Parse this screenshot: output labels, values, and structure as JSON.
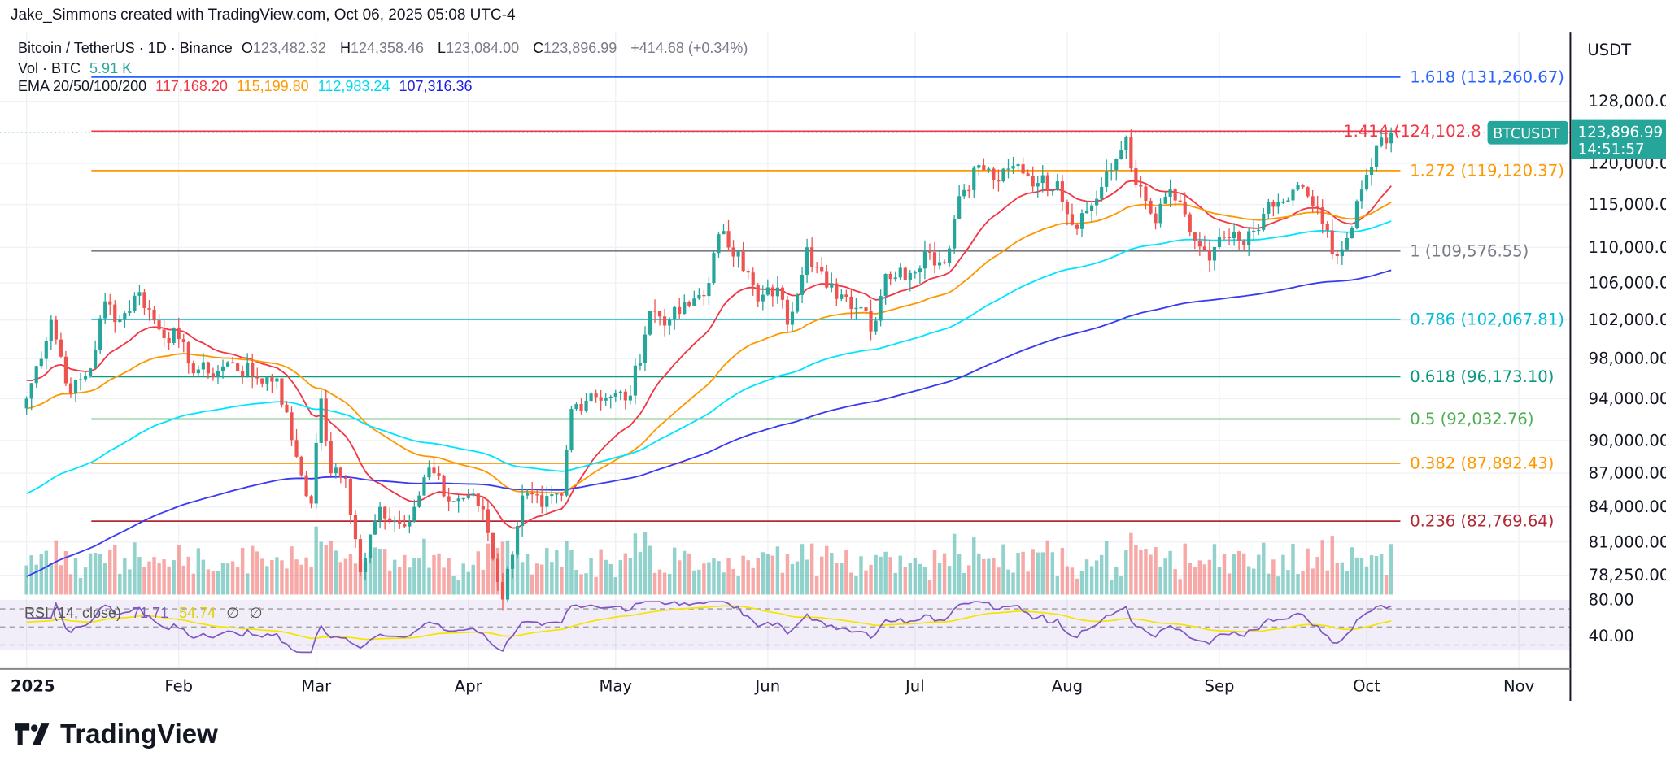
{
  "credit": "Jake_Simmons created with TradingView.com, Oct 06, 2025 05:08 UTC-4",
  "symbol": {
    "title": "Bitcoin / TetherUS · 1D · Binance",
    "o_label": "O",
    "o": "123,482.32",
    "h_label": "H",
    "h": "124,358.46",
    "l_label": "L",
    "l": "123,084.00",
    "c_label": "C",
    "c": "123,896.99",
    "change": "+414.68 (+0.34%)",
    "vol_label": "Vol · BTC",
    "vol": "5.91 K",
    "ema_label": "EMA 20/50/100/200",
    "ema20": "117,168.20",
    "ema50": "115,199.80",
    "ema100": "112,983.24",
    "ema200": "107,316.36"
  },
  "rsi": {
    "label": "RSI (14, close)",
    "value": "71.71",
    "ma": "54.74",
    "na1": "∅",
    "na2": "∅",
    "levels": [
      "80.00",
      "40.00"
    ]
  },
  "price_axis": {
    "currency": "USDT",
    "ticks": [
      "128,000.00",
      "120,000.00",
      "115,000.00",
      "110,000.00",
      "106,000.00",
      "102,000.00",
      "98,000.00",
      "94,000.00",
      "90,000.00",
      "87,000.00",
      "84,000.00",
      "81,000.00",
      "78,250.00"
    ],
    "current_label": "BTCUSDT",
    "current_price": "123,896.99",
    "countdown": "14:51:57"
  },
  "time_axis": [
    "2025",
    "Feb",
    "Mar",
    "Apr",
    "May",
    "Jun",
    "Jul",
    "Aug",
    "Sep",
    "Oct",
    "Nov"
  ],
  "logo": "TradingView",
  "colors": {
    "up": "#26a69a",
    "down": "#ef5350",
    "ema20": "#f23645",
    "ema50": "#ff9800",
    "ema100": "#00e5ff",
    "ema200": "#3a3af0",
    "rsi": "#7e57c2",
    "rsi_ma": "#f5e400"
  },
  "chart_data": {
    "type": "candlestick",
    "scale": "log",
    "ylim": [
      76000,
      134000
    ],
    "xlim": [
      "2025-01-01",
      "2025-11-10"
    ],
    "grid": true,
    "fib_levels": [
      {
        "level": "1.618",
        "price": 131260.67,
        "label": "1.618 (131,260.67)",
        "color": "#2962ff"
      },
      {
        "level": "1.414",
        "price": 124102.8,
        "label": "1.414 (124,102.8",
        "color": "#f23645"
      },
      {
        "level": "1.272",
        "price": 119120.37,
        "label": "1.272 (119,120.37)",
        "color": "#ff9800"
      },
      {
        "level": "1",
        "price": 109576.55,
        "label": "1 (109,576.55)",
        "color": "#787b86"
      },
      {
        "level": "0.786",
        "price": 102067.81,
        "label": "0.786 (102,067.81)",
        "color": "#00bcd4"
      },
      {
        "level": "0.618",
        "price": 96173.1,
        "label": "0.618 (96,173.10)",
        "color": "#089981"
      },
      {
        "level": "0.5",
        "price": 92032.76,
        "label": "0.5 (92,032.76)",
        "color": "#4caf50"
      },
      {
        "level": "0.382",
        "price": 87892.43,
        "label": "0.382 (87,892.43)",
        "color": "#ff9800"
      },
      {
        "level": "0.236",
        "price": 82769.64,
        "label": "0.236 (82,769.64)",
        "color": "#b22833"
      }
    ],
    "closes": [
      [
        "2025-01-01",
        94000
      ],
      [
        "2025-01-06",
        102000
      ],
      [
        "2025-01-10",
        94500
      ],
      [
        "2025-01-14",
        97000
      ],
      [
        "2025-01-17",
        104000
      ],
      [
        "2025-01-20",
        102000
      ],
      [
        "2025-01-24",
        105000
      ],
      [
        "2025-01-28",
        101000
      ],
      [
        "2025-02-01",
        100000
      ],
      [
        "2025-02-03",
        97500
      ],
      [
        "2025-02-07",
        96500
      ],
      [
        "2025-02-12",
        97500
      ],
      [
        "2025-02-17",
        96000
      ],
      [
        "2025-02-21",
        96000
      ],
      [
        "2025-02-25",
        88500
      ],
      [
        "2025-02-28",
        84300
      ],
      [
        "2025-03-02",
        94000
      ],
      [
        "2025-03-04",
        87000
      ],
      [
        "2025-03-07",
        86500
      ],
      [
        "2025-03-10",
        78500
      ],
      [
        "2025-03-14",
        84000
      ],
      [
        "2025-03-18",
        82500
      ],
      [
        "2025-03-21",
        84000
      ],
      [
        "2025-03-24",
        87500
      ],
      [
        "2025-03-28",
        84500
      ],
      [
        "2025-04-01",
        85000
      ],
      [
        "2025-04-04",
        83800
      ],
      [
        "2025-04-08",
        76300
      ],
      [
        "2025-04-12",
        85000
      ],
      [
        "2025-04-16",
        84000
      ],
      [
        "2025-04-20",
        85000
      ],
      [
        "2025-04-22",
        93000
      ],
      [
        "2025-04-26",
        94500
      ],
      [
        "2025-04-30",
        94200
      ],
      [
        "2025-05-04",
        94300
      ],
      [
        "2025-05-08",
        103000
      ],
      [
        "2025-05-12",
        102000
      ],
      [
        "2025-05-16",
        103500
      ],
      [
        "2025-05-20",
        106000
      ],
      [
        "2025-05-22",
        111500
      ],
      [
        "2025-05-26",
        109500
      ],
      [
        "2025-05-30",
        104000
      ],
      [
        "2025-06-03",
        105500
      ],
      [
        "2025-06-05",
        101500
      ],
      [
        "2025-06-09",
        110000
      ],
      [
        "2025-06-13",
        105500
      ],
      [
        "2025-06-17",
        104500
      ],
      [
        "2025-06-21",
        103000
      ],
      [
        "2025-06-22",
        100800
      ],
      [
        "2025-06-25",
        107000
      ],
      [
        "2025-06-30",
        107100
      ],
      [
        "2025-07-03",
        109500
      ],
      [
        "2025-07-07",
        108200
      ],
      [
        "2025-07-10",
        116000
      ],
      [
        "2025-07-14",
        119800
      ],
      [
        "2025-07-18",
        117800
      ],
      [
        "2025-07-22",
        119900
      ],
      [
        "2025-07-26",
        117600
      ],
      [
        "2025-07-30",
        117800
      ],
      [
        "2025-08-02",
        112600
      ],
      [
        "2025-08-06",
        114900
      ],
      [
        "2025-08-10",
        119200
      ],
      [
        "2025-08-13",
        123300
      ],
      [
        "2025-08-15",
        117400
      ],
      [
        "2025-08-19",
        112800
      ],
      [
        "2025-08-22",
        116900
      ],
      [
        "2025-08-26",
        111700
      ],
      [
        "2025-08-30",
        108500
      ],
      [
        "2025-09-02",
        111200
      ],
      [
        "2025-09-06",
        110200
      ],
      [
        "2025-09-10",
        113900
      ],
      [
        "2025-09-14",
        115300
      ],
      [
        "2025-09-18",
        117100
      ],
      [
        "2025-09-22",
        112700
      ],
      [
        "2025-09-25",
        109000
      ],
      [
        "2025-09-28",
        112200
      ],
      [
        "2025-10-01",
        118600
      ],
      [
        "2025-10-03",
        122300
      ],
      [
        "2025-10-06",
        123897
      ]
    ]
  }
}
